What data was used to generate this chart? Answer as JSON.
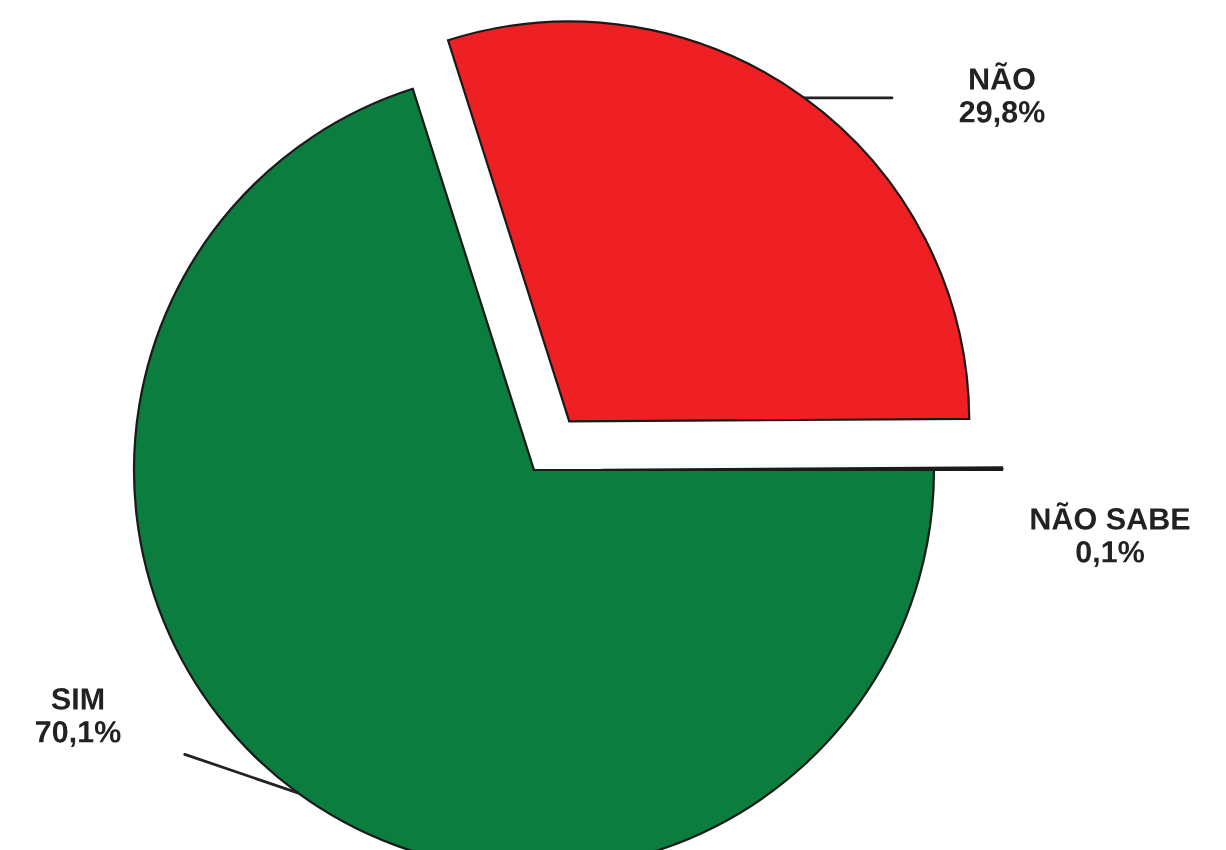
{
  "chart_data": {
    "type": "pie",
    "categories": [
      "SIM",
      "NÃO",
      "NÃO SABE"
    ],
    "values": [
      70.1,
      29.8,
      0.1
    ],
    "value_labels": [
      "70,1%",
      "29,8%",
      "0,1%"
    ],
    "colors": [
      "#0b7d3e",
      "#ee2024",
      "#e6e6e6"
    ]
  }
}
